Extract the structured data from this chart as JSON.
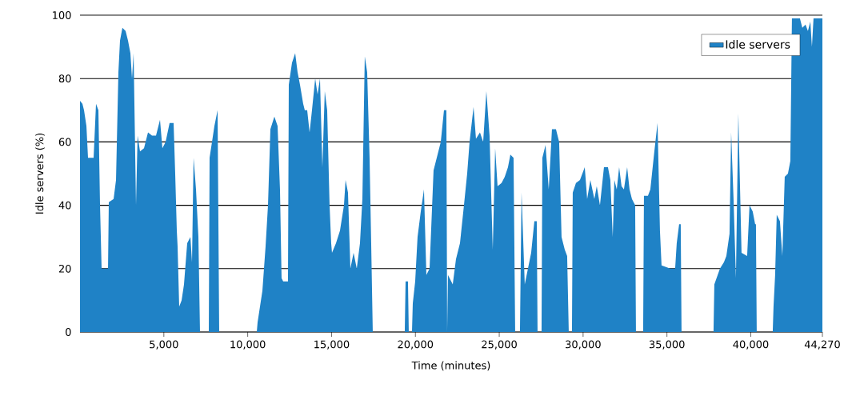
{
  "chart_data": {
    "type": "area",
    "xlabel": "Time (minutes)",
    "ylabel": "Idle servers (%)",
    "x": [
      0,
      143,
      239,
      382,
      477,
      811,
      954,
      1097,
      1193,
      1288,
      1670,
      1717,
      2003,
      2147,
      2290,
      2385,
      2528,
      2719,
      2862,
      3005,
      3101,
      3196,
      3339,
      3434,
      3578,
      3816,
      4055,
      4293,
      4532,
      4770,
      4913,
      5104,
      5342,
      5581,
      5676,
      5772,
      5819,
      5915,
      6058,
      6201,
      6392,
      6583,
      6678,
      6773,
      6917,
      7060,
      7155,
      7680,
      7727,
      7871,
      8014,
      8204,
      8300,
      10542,
      10589,
      10876,
      11066,
      11210,
      11353,
      11591,
      11782,
      11925,
      12020,
      12116,
      12402,
      12450,
      12641,
      12831,
      12974,
      13118,
      13308,
      13404,
      13547,
      13690,
      13833,
      14024,
      14167,
      14310,
      14453,
      14596,
      14739,
      14882,
      14978,
      15026,
      15264,
      15503,
      15741,
      15836,
      15980,
      16123,
      16314,
      16504,
      16695,
      16838,
      16981,
      17124,
      17267,
      17363,
      17458,
      19366,
      19414,
      19557,
      19605,
      19796,
      19844,
      19987,
      20129,
      20320,
      20511,
      20654,
      20845,
      21083,
      21322,
      21513,
      21704,
      21847,
      21894,
      21942,
      22228,
      22419,
      22658,
      22896,
      23087,
      23230,
      23468,
      23612,
      23850,
      24041,
      24232,
      24422,
      24613,
      24756,
      24899,
      25138,
      25329,
      25520,
      25663,
      25853,
      25949,
      26235,
      26330,
      26521,
      26712,
      26903,
      27094,
      27237,
      27284,
      27523,
      27571,
      27761,
      27952,
      28143,
      28382,
      28572,
      28715,
      28906,
      29049,
      29145,
      29336,
      29383,
      29574,
      29813,
      30099,
      30242,
      30433,
      30672,
      30815,
      31005,
      31244,
      31482,
      31625,
      31768,
      31864,
      32007,
      32150,
      32293,
      32436,
      32627,
      32770,
      32913,
      33104,
      33152,
      33581,
      33629,
      33867,
      34010,
      34249,
      34439,
      34583,
      34678,
      35203,
      35489,
      35584,
      35727,
      35822,
      35870,
      37778,
      37826,
      38160,
      38399,
      38542,
      38732,
      38828,
      38971,
      39114,
      39257,
      39448,
      39782,
      39925,
      40116,
      40259,
      40307,
      40354,
      41308,
      41356,
      41451,
      41547,
      41738,
      41881,
      42024,
      42215,
      42358,
      42453,
      42930,
      43073,
      43264,
      43407,
      43550,
      43646,
      43741,
      44270
    ],
    "series": [
      {
        "name": "Idle servers",
        "color": "#1f82c6",
        "values": [
          73,
          72,
          70,
          65,
          55,
          55,
          72,
          70,
          40,
          20,
          20,
          41,
          42,
          48,
          82,
          92,
          96,
          95,
          92,
          88,
          80,
          88,
          40,
          62,
          57,
          58,
          63,
          62,
          62,
          67,
          58,
          60,
          66,
          66,
          50,
          32,
          27,
          8,
          10,
          15,
          28,
          30,
          22,
          55,
          45,
          30,
          0,
          0,
          55,
          60,
          65,
          70,
          0,
          0,
          3,
          13,
          27,
          40,
          64,
          68,
          65,
          45,
          17,
          16,
          16,
          78,
          85,
          88,
          82,
          78,
          72,
          70,
          70,
          63,
          70,
          80,
          75,
          80,
          52,
          76,
          70,
          40,
          28,
          25,
          28,
          32,
          40,
          48,
          44,
          20,
          25,
          20,
          28,
          42,
          87,
          82,
          55,
          28,
          0,
          0,
          16,
          16,
          0,
          0,
          9,
          16,
          30,
          38,
          45,
          18,
          20,
          51,
          56,
          60,
          70,
          70,
          0,
          18,
          15,
          23,
          28,
          40,
          50,
          60,
          71,
          61,
          63,
          60,
          76,
          62,
          26,
          58,
          46,
          47,
          49,
          52,
          56,
          55,
          0,
          0,
          44,
          15,
          20,
          25,
          35,
          35,
          0,
          0,
          55,
          59,
          45,
          64,
          64,
          60,
          30,
          26,
          24,
          0,
          0,
          44,
          47,
          48,
          52,
          42,
          48,
          42,
          46,
          40,
          52,
          52,
          48,
          30,
          48,
          45,
          52,
          46,
          45,
          52,
          45,
          42,
          40,
          0,
          0,
          43,
          43,
          45,
          57,
          66,
          32,
          21,
          20,
          20,
          28,
          34,
          34,
          0,
          0,
          15,
          20,
          22,
          24,
          31,
          63,
          42,
          17,
          69,
          25,
          24,
          40,
          38,
          34,
          34,
          0,
          0,
          8,
          18,
          37,
          35,
          24,
          49,
          50,
          54,
          99,
          99,
          96,
          97,
          95,
          98,
          90,
          99,
          99
        ]
      }
    ],
    "xlim": [
      0,
      44270
    ],
    "xticks": [
      {
        "value": 5000,
        "label": "5,000"
      },
      {
        "value": 10000,
        "label": "10,000"
      },
      {
        "value": 15000,
        "label": "15,000"
      },
      {
        "value": 20000,
        "label": "20,000"
      },
      {
        "value": 25000,
        "label": "25,000"
      },
      {
        "value": 30000,
        "label": "30,000"
      },
      {
        "value": 35000,
        "label": "35,000"
      },
      {
        "value": 40000,
        "label": "40,000"
      },
      {
        "value": 44270,
        "label": "44,270"
      }
    ],
    "ylim": [
      0,
      100
    ],
    "yticks": [
      0,
      20,
      40,
      60,
      80,
      100
    ],
    "grid": "y",
    "legend": "top right"
  }
}
